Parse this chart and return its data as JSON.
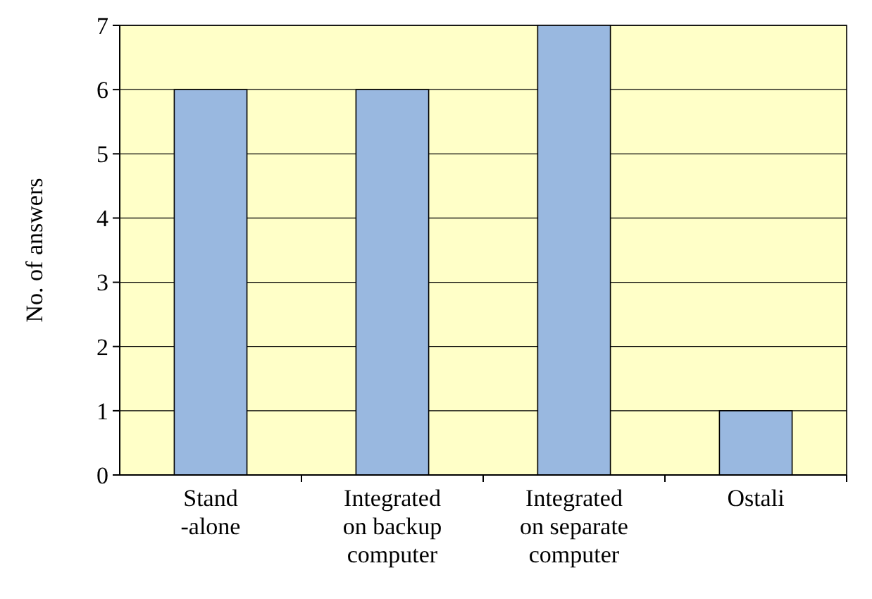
{
  "chart_data": {
    "type": "bar",
    "ylabel": "No. of answers",
    "categories": [
      "Stand\n-alone",
      "Integrated\non backup\ncomputer",
      "Integrated\non separate\ncomputer",
      "Ostali"
    ],
    "values": [
      6,
      6,
      7,
      1
    ],
    "color": "#99b8e0",
    "ylim": [
      0,
      7
    ],
    "yticks": [
      0,
      1,
      2,
      3,
      4,
      5,
      6,
      7
    ],
    "grid": "y"
  }
}
